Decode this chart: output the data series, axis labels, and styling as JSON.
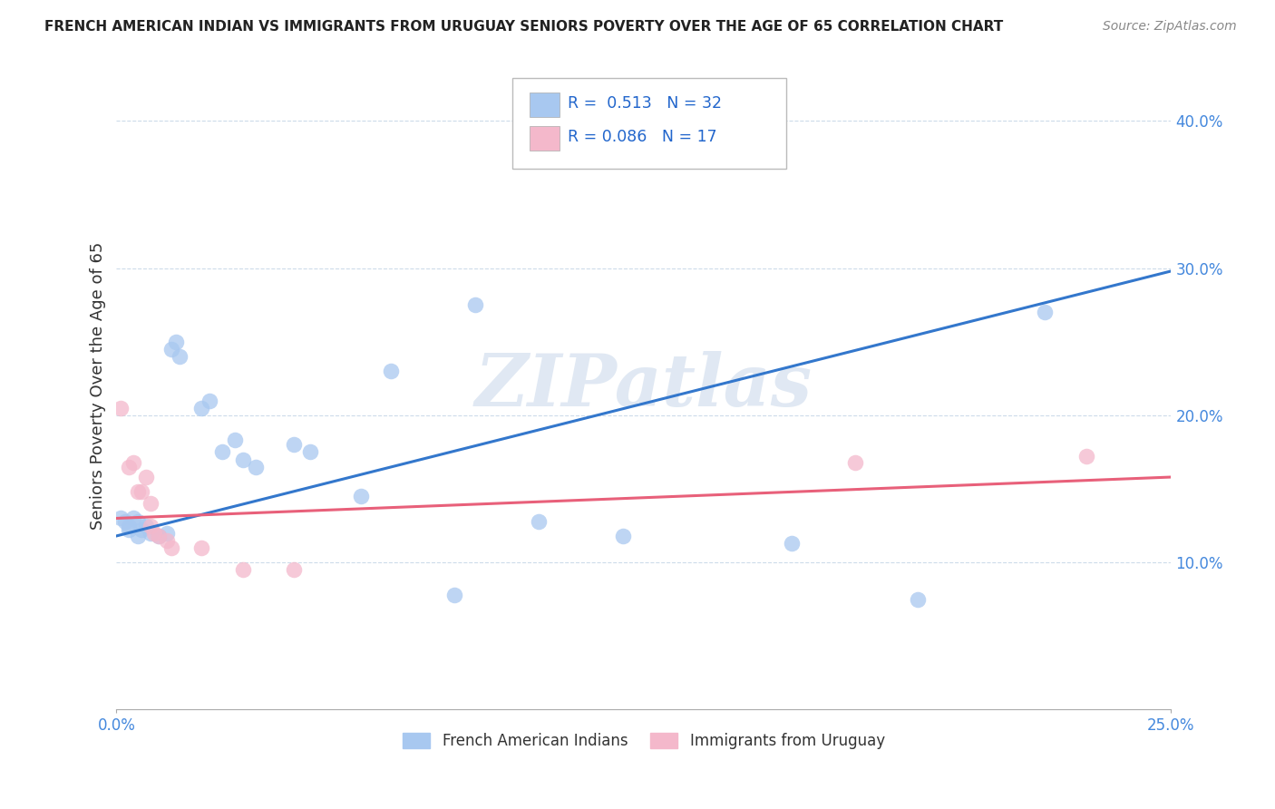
{
  "title": "FRENCH AMERICAN INDIAN VS IMMIGRANTS FROM URUGUAY SENIORS POVERTY OVER THE AGE OF 65 CORRELATION CHART",
  "source": "Source: ZipAtlas.com",
  "ylabel": "Seniors Poverty Over the Age of 65",
  "xlabel_blue": "French American Indians",
  "xlabel_pink": "Immigrants from Uruguay",
  "xmin": 0.0,
  "xmax": 0.25,
  "ymin": 0.0,
  "ymax": 0.44,
  "ytick_vals": [
    0.1,
    0.2,
    0.3,
    0.4
  ],
  "ytick_labels": [
    "10.0%",
    "20.0%",
    "30.0%",
    "40.0%"
  ],
  "xtick_vals": [
    0.0,
    0.25
  ],
  "xtick_labels": [
    "0.0%",
    "25.0%"
  ],
  "R_blue": 0.513,
  "N_blue": 32,
  "R_pink": 0.086,
  "N_pink": 17,
  "blue_scatter_color": "#a8c8f0",
  "pink_scatter_color": "#f4b8cb",
  "blue_line_color": "#3377cc",
  "pink_line_color": "#e8607a",
  "watermark": "ZIPatlas",
  "blue_scatter": [
    [
      0.001,
      0.13
    ],
    [
      0.002,
      0.128
    ],
    [
      0.003,
      0.125
    ],
    [
      0.003,
      0.122
    ],
    [
      0.004,
      0.13
    ],
    [
      0.005,
      0.118
    ],
    [
      0.005,
      0.128
    ],
    [
      0.006,
      0.122
    ],
    [
      0.007,
      0.125
    ],
    [
      0.008,
      0.12
    ],
    [
      0.01,
      0.118
    ],
    [
      0.012,
      0.12
    ],
    [
      0.013,
      0.245
    ],
    [
      0.014,
      0.25
    ],
    [
      0.015,
      0.24
    ],
    [
      0.02,
      0.205
    ],
    [
      0.022,
      0.21
    ],
    [
      0.025,
      0.175
    ],
    [
      0.028,
      0.183
    ],
    [
      0.03,
      0.17
    ],
    [
      0.033,
      0.165
    ],
    [
      0.042,
      0.18
    ],
    [
      0.046,
      0.175
    ],
    [
      0.058,
      0.145
    ],
    [
      0.065,
      0.23
    ],
    [
      0.08,
      0.078
    ],
    [
      0.085,
      0.275
    ],
    [
      0.1,
      0.128
    ],
    [
      0.12,
      0.118
    ],
    [
      0.16,
      0.113
    ],
    [
      0.19,
      0.075
    ],
    [
      0.22,
      0.27
    ]
  ],
  "pink_scatter": [
    [
      0.001,
      0.205
    ],
    [
      0.003,
      0.165
    ],
    [
      0.004,
      0.168
    ],
    [
      0.005,
      0.148
    ],
    [
      0.006,
      0.148
    ],
    [
      0.007,
      0.158
    ],
    [
      0.008,
      0.14
    ],
    [
      0.008,
      0.125
    ],
    [
      0.009,
      0.12
    ],
    [
      0.01,
      0.118
    ],
    [
      0.012,
      0.115
    ],
    [
      0.013,
      0.11
    ],
    [
      0.02,
      0.11
    ],
    [
      0.03,
      0.095
    ],
    [
      0.042,
      0.095
    ],
    [
      0.175,
      0.168
    ],
    [
      0.23,
      0.172
    ]
  ],
  "blue_line_x": [
    0.0,
    0.25
  ],
  "blue_line_y": [
    0.118,
    0.298
  ],
  "pink_line_x": [
    0.0,
    0.25
  ],
  "pink_line_y": [
    0.13,
    0.158
  ]
}
